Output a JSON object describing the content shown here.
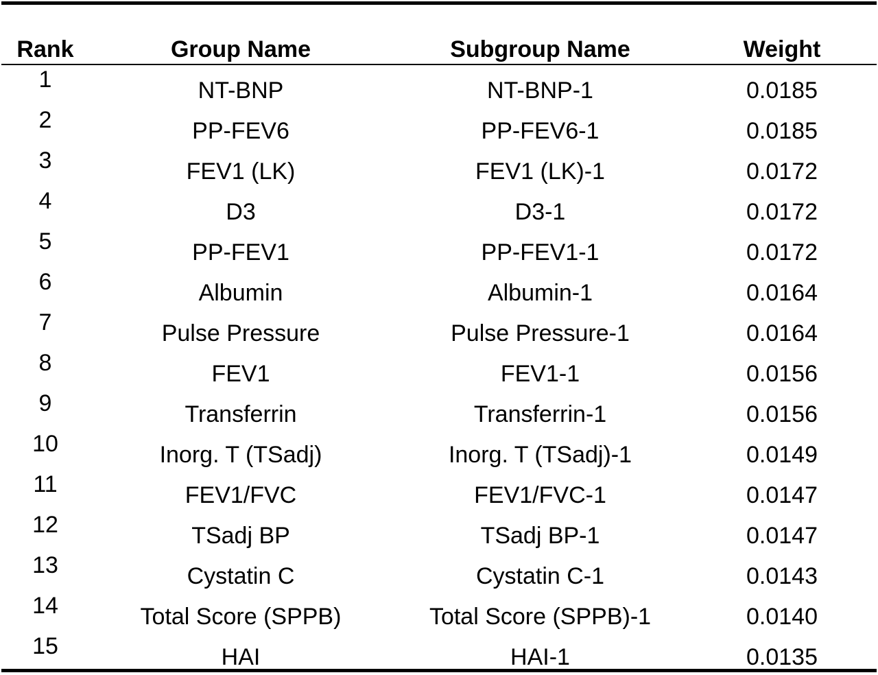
{
  "table": {
    "headers": {
      "rank": "Rank",
      "group_name": "Group Name",
      "subgroup_name": "Subgroup Name",
      "weight": "Weight"
    },
    "rows": [
      {
        "rank": "1",
        "group": "NT-BNP",
        "subgroup": "NT-BNP-1",
        "weight": "0.0185"
      },
      {
        "rank": "2",
        "group": "PP-FEV6",
        "subgroup": "PP-FEV6-1",
        "weight": "0.0185"
      },
      {
        "rank": "3",
        "group": "FEV1 (LK)",
        "subgroup": "FEV1 (LK)-1",
        "weight": "0.0172"
      },
      {
        "rank": "4",
        "group": "D3",
        "subgroup": "D3-1",
        "weight": "0.0172"
      },
      {
        "rank": "5",
        "group": "PP-FEV1",
        "subgroup": "PP-FEV1-1",
        "weight": "0.0172"
      },
      {
        "rank": "6",
        "group": "Albumin",
        "subgroup": "Albumin-1",
        "weight": "0.0164"
      },
      {
        "rank": "7",
        "group": "Pulse Pressure",
        "subgroup": "Pulse Pressure-1",
        "weight": "0.0164"
      },
      {
        "rank": "8",
        "group": "FEV1",
        "subgroup": "FEV1-1",
        "weight": "0.0156"
      },
      {
        "rank": "9",
        "group": "Transferrin",
        "subgroup": "Transferrin-1",
        "weight": "0.0156"
      },
      {
        "rank": "10",
        "group": "Inorg. T (TSadj)",
        "subgroup": "Inorg. T (TSadj)-1",
        "weight": "0.0149"
      },
      {
        "rank": "11",
        "group": "FEV1/FVC",
        "subgroup": "FEV1/FVC-1",
        "weight": "0.0147"
      },
      {
        "rank": "12",
        "group": "TSadj BP",
        "subgroup": "TSadj BP-1",
        "weight": "0.0147"
      },
      {
        "rank": "13",
        "group": "Cystatin C",
        "subgroup": "Cystatin C-1",
        "weight": "0.0143"
      },
      {
        "rank": "14",
        "group": "Total Score (SPPB)",
        "subgroup": "Total Score (SPPB)-1",
        "weight": "0.0140"
      },
      {
        "rank": "15",
        "group": "HAI",
        "subgroup": "HAI-1",
        "weight": "0.0135"
      }
    ]
  }
}
